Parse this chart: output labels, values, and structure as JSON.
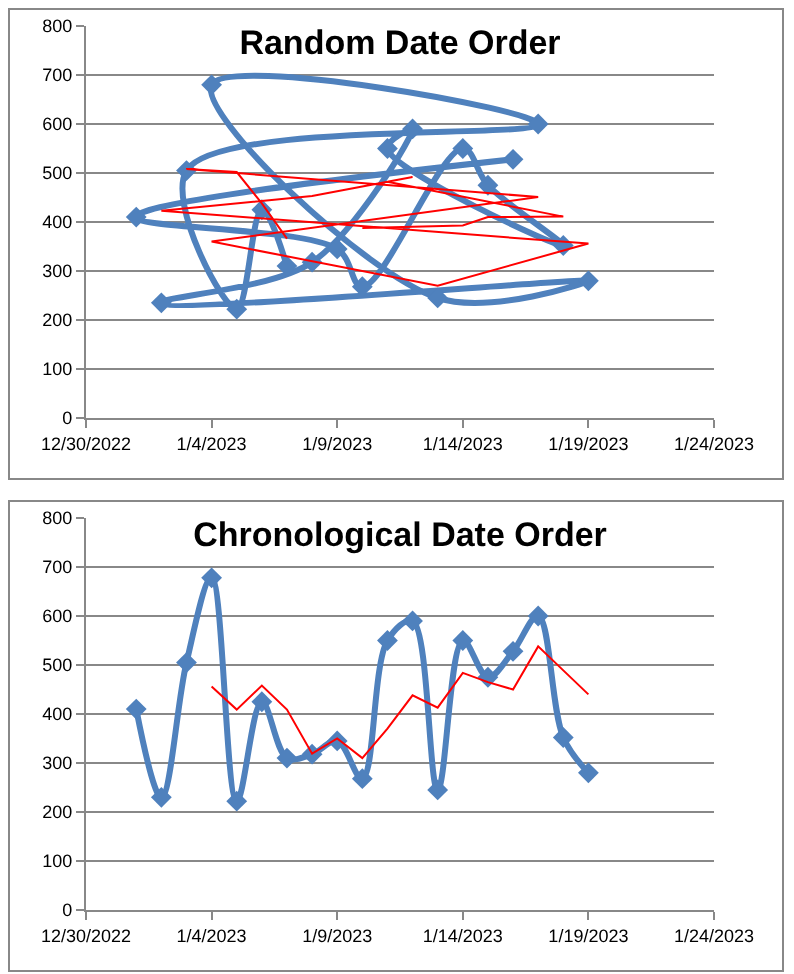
{
  "chart_data": [
    {
      "type": "line",
      "title": "Random Date Order",
      "grid": "y",
      "ylim": [
        0,
        800
      ],
      "yticks": [
        0,
        100,
        200,
        300,
        400,
        500,
        600,
        700,
        800
      ],
      "xlim": [
        "2022-12-30",
        "2023-01-24"
      ],
      "xticks": [
        {
          "value": "2022-12-30",
          "label": "12/30/2022"
        },
        {
          "value": "2023-01-04",
          "label": "1/4/2023"
        },
        {
          "value": "2023-01-09",
          "label": "1/9/2023"
        },
        {
          "value": "2023-01-14",
          "label": "1/14/2023"
        },
        {
          "value": "2023-01-19",
          "label": "1/19/2023"
        },
        {
          "value": "2023-01-24",
          "label": "1/24/2023"
        }
      ],
      "series": [
        {
          "color": "#4f81bd",
          "marker": "diamond",
          "x": [
            "2023-01-16",
            "2023-01-01",
            "2023-01-09",
            "2023-01-10",
            "2023-01-14",
            "2023-01-15",
            "2023-01-18",
            "2023-01-11",
            "2023-01-12",
            "2023-01-08",
            "2023-01-02",
            "2023-01-19",
            "2023-01-13",
            "2023-01-04",
            "2023-01-17",
            "2023-01-03",
            "2023-01-05",
            "2023-01-06",
            "2023-01-07"
          ],
          "values": [
            528,
            410,
            345,
            268,
            550,
            475,
            352,
            550,
            590,
            318,
            235,
            280,
            245,
            680,
            600,
            505,
            222,
            425,
            310
          ]
        },
        {
          "color": "#ff0000",
          "marker": "none",
          "x": [
            "2023-01-10",
            "2023-01-14",
            "2023-01-15",
            "2023-01-18",
            "2023-01-11",
            "2023-01-12",
            "2023-01-08",
            "2023-01-02",
            "2023-01-19",
            "2023-01-13",
            "2023-01-04",
            "2023-01-17",
            "2023-01-03",
            "2023-01-05",
            "2023-01-06",
            "2023-01-07"
          ],
          "values": [
            388,
            393,
            410,
            411,
            482,
            492,
            453,
            423,
            356,
            270,
            360,
            451,
            508,
            502,
            438,
            366
          ]
        }
      ]
    },
    {
      "type": "line",
      "title": "Chronological Date Order",
      "grid": "y",
      "ylim": [
        0,
        800
      ],
      "yticks": [
        0,
        100,
        200,
        300,
        400,
        500,
        600,
        700,
        800
      ],
      "xlim": [
        "2022-12-30",
        "2023-01-24"
      ],
      "xticks": [
        {
          "value": "2022-12-30",
          "label": "12/30/2022"
        },
        {
          "value": "2023-01-04",
          "label": "1/4/2023"
        },
        {
          "value": "2023-01-09",
          "label": "1/9/2023"
        },
        {
          "value": "2023-01-14",
          "label": "1/14/2023"
        },
        {
          "value": "2023-01-19",
          "label": "1/19/2023"
        },
        {
          "value": "2023-01-24",
          "label": "1/24/2023"
        }
      ],
      "series": [
        {
          "color": "#4f81bd",
          "marker": "diamond",
          "x": [
            "2023-01-01",
            "2023-01-02",
            "2023-01-03",
            "2023-01-04",
            "2023-01-05",
            "2023-01-06",
            "2023-01-07",
            "2023-01-08",
            "2023-01-09",
            "2023-01-10",
            "2023-01-11",
            "2023-01-12",
            "2023-01-13",
            "2023-01-14",
            "2023-01-15",
            "2023-01-16",
            "2023-01-17",
            "2023-01-18",
            "2023-01-19"
          ],
          "values": [
            410,
            230,
            505,
            678,
            222,
            425,
            310,
            318,
            345,
            268,
            550,
            590,
            245,
            550,
            475,
            528,
            600,
            352,
            280
          ]
        },
        {
          "color": "#ff0000",
          "marker": "none",
          "x": [
            "2023-01-04",
            "2023-01-05",
            "2023-01-06",
            "2023-01-07",
            "2023-01-08",
            "2023-01-09",
            "2023-01-10",
            "2023-01-11",
            "2023-01-12",
            "2023-01-13",
            "2023-01-14",
            "2023-01-15",
            "2023-01-16",
            "2023-01-17",
            "2023-01-18",
            "2023-01-19"
          ],
          "values": [
            456,
            409,
            458,
            409,
            319,
            350,
            310,
            370,
            438,
            413,
            484,
            465,
            450,
            538,
            489,
            440
          ]
        }
      ]
    }
  ]
}
